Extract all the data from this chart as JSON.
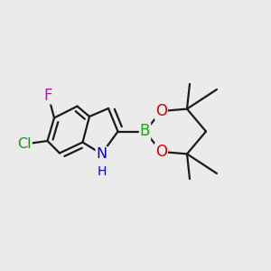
{
  "background_color": "#ebebeb",
  "bond_color": "#1a1a1a",
  "bond_width": 1.6,
  "figsize": [
    3.0,
    3.0
  ],
  "dpi": 100,
  "atoms": {
    "N1": {
      "label": "N",
      "color": "#0000cc"
    },
    "NH": {
      "label": "H",
      "color": "#0000cc"
    },
    "B": {
      "label": "B",
      "color": "#00bb00"
    },
    "O1": {
      "label": "O",
      "color": "#cc0000"
    },
    "O2": {
      "label": "O",
      "color": "#cc0000"
    },
    "F": {
      "label": "F",
      "color": "#cc00cc"
    },
    "Cl": {
      "label": "Cl",
      "color": "#228822"
    }
  }
}
